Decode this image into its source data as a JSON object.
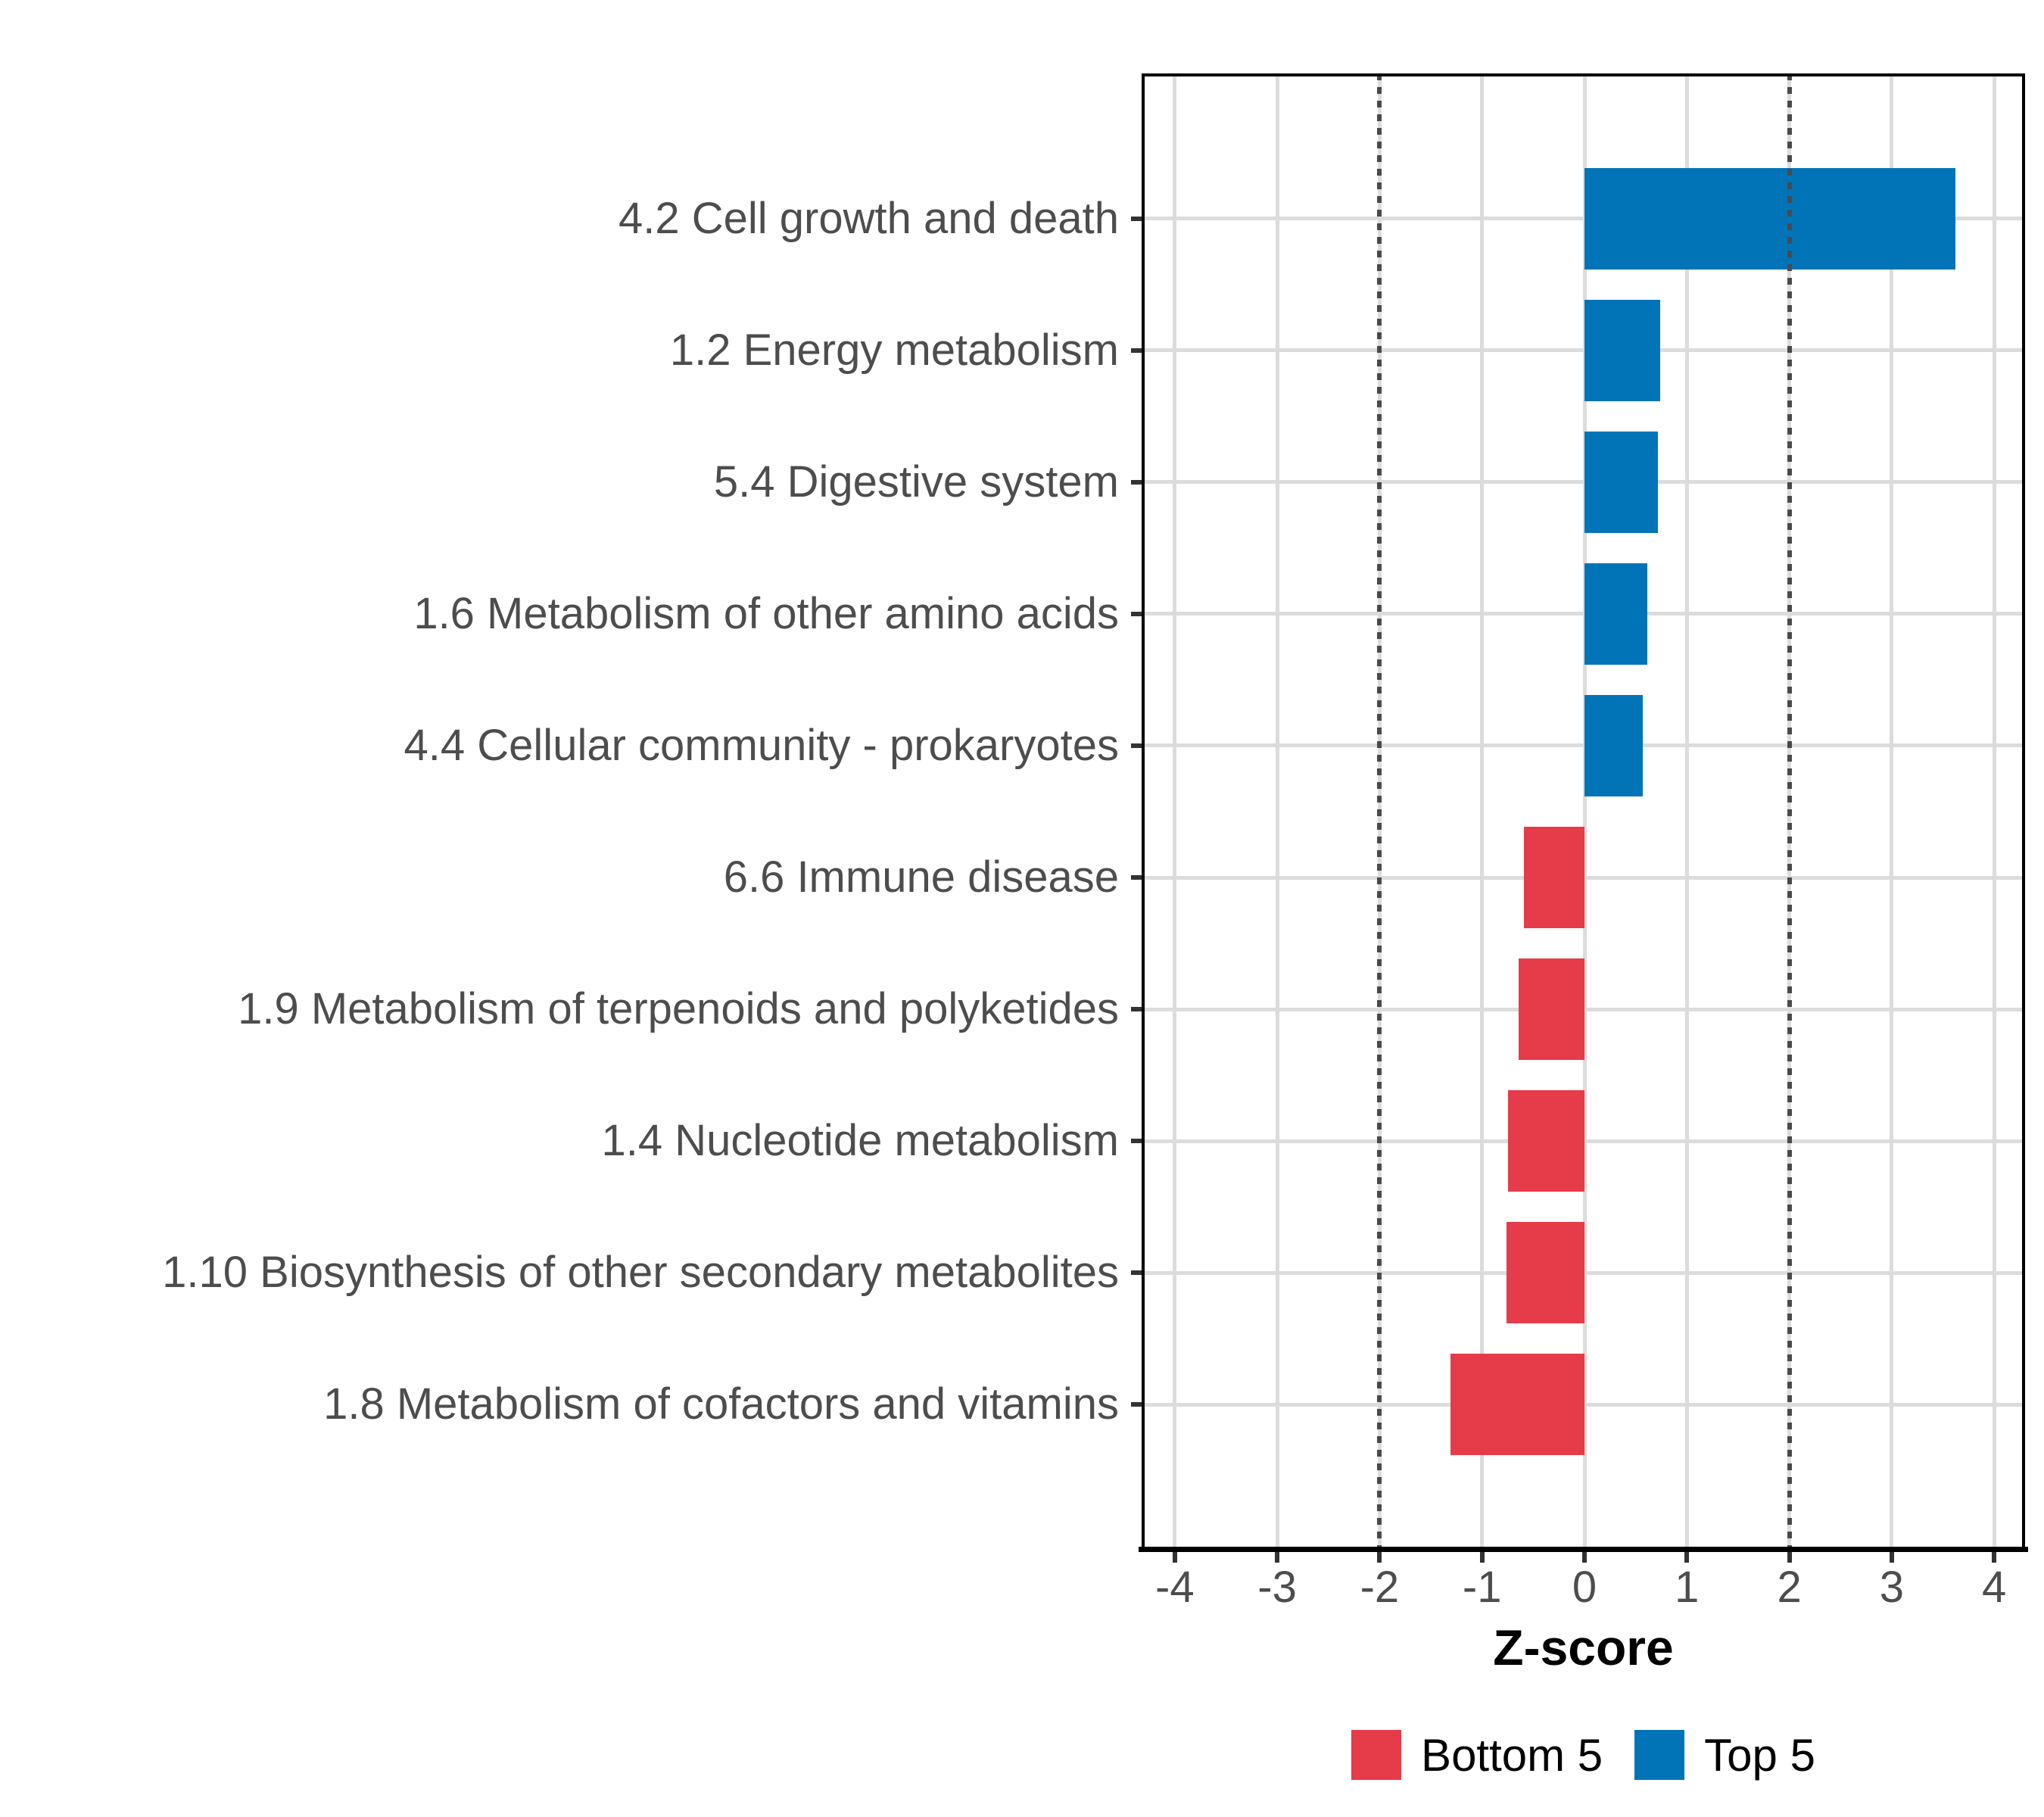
{
  "chart_data": {
    "type": "bar",
    "orientation": "horizontal",
    "title": "",
    "xlabel": "Z-score",
    "ylabel": "",
    "xlim": [
      -4.31,
      4.31
    ],
    "xticks": [
      -4,
      -3,
      -2,
      -1,
      0,
      1,
      2,
      3,
      4
    ],
    "xtick_labels": [
      "-4",
      "-3",
      "-2",
      "-1",
      "0",
      "1",
      "2",
      "3",
      "4"
    ],
    "grid": "major-only",
    "reference_lines": {
      "values": [
        -2,
        2
      ],
      "style": "dotted",
      "color": "#4A4A4A"
    },
    "bar_width_fraction": 0.7,
    "categories": [
      "4.2 Cell growth and death",
      "1.2 Energy metabolism",
      "5.4 Digestive system",
      "1.6 Metabolism of other amino acids",
      "4.4 Cellular community - prokaryotes",
      "6.6 Immune disease",
      "1.9 Metabolism of terpenoids and polyketides",
      "1.4 Nucleotide metabolism",
      "1.10 Biosynthesis of other secondary metabolites",
      "1.8 Metabolism of cofactors and vitamins"
    ],
    "series": [
      {
        "name": "Z-score",
        "values": [
          3.62,
          0.74,
          0.72,
          0.61,
          0.57,
          -0.59,
          -0.64,
          -0.75,
          -0.76,
          -1.31
        ]
      }
    ],
    "point_groups": [
      "Top 5",
      "Top 5",
      "Top 5",
      "Top 5",
      "Top 5",
      "Bottom 5",
      "Bottom 5",
      "Bottom 5",
      "Bottom 5",
      "Bottom 5"
    ],
    "legend_position": "bottom",
    "legend": {
      "entries": [
        {
          "label": "Bottom 5",
          "color": "#E63B49"
        },
        {
          "label": "Top 5",
          "color": "#0074B7"
        }
      ]
    }
  },
  "colors": {
    "top5_blue": "#0074B7",
    "bottom5_red": "#E63B49",
    "gridline": "#DCDCDC",
    "refline": "#4A4A4A",
    "axis_text": "#4D4D4D",
    "panel_border": "#000000"
  }
}
